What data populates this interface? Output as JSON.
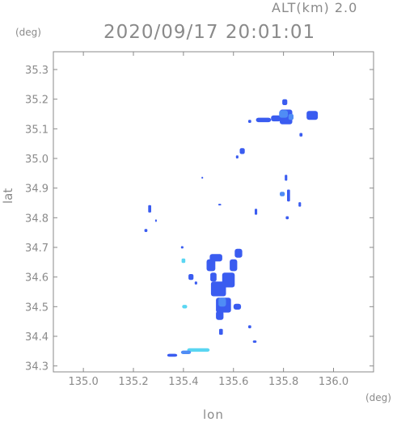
{
  "chart_data": {
    "type": "scatter",
    "header_right": "ALT(km)  2.0",
    "title": "2020/09/17 20:01:01",
    "xlabel": "lon",
    "ylabel": "lat",
    "x_unit": "(deg)",
    "y_unit": "(deg)",
    "xlim": [
      134.88,
      136.16
    ],
    "ylim": [
      34.28,
      35.36
    ],
    "x_ticks": [
      "135.0",
      "135.2",
      "135.4",
      "135.6",
      "135.8",
      "136.0"
    ],
    "x_tick_values": [
      135.0,
      135.2,
      135.4,
      135.6,
      135.8,
      136.0
    ],
    "y_ticks": [
      "34.3",
      "34.4",
      "34.5",
      "34.6",
      "34.7",
      "34.8",
      "34.9",
      "35.0",
      "35.1",
      "35.2",
      "35.3"
    ],
    "y_tick_values": [
      34.3,
      34.4,
      34.5,
      34.6,
      34.7,
      34.8,
      34.9,
      35.0,
      35.1,
      35.2,
      35.3
    ],
    "grid": false,
    "colors": {
      "weak": "#3a5cf0",
      "moderate": "#4f8cf5",
      "strong": "#5ad6f2",
      "axis": "#8a8a8a"
    },
    "echo_cells": [
      {
        "x": 135.72,
        "y": 35.13,
        "w": 0.06,
        "h": 0.015,
        "level": "weak"
      },
      {
        "x": 135.77,
        "y": 35.135,
        "w": 0.04,
        "h": 0.02,
        "level": "weak"
      },
      {
        "x": 135.81,
        "y": 35.14,
        "w": 0.05,
        "h": 0.05,
        "level": "weak"
      },
      {
        "x": 135.8,
        "y": 35.15,
        "w": 0.035,
        "h": 0.025,
        "level": "moderate"
      },
      {
        "x": 135.805,
        "y": 35.19,
        "w": 0.02,
        "h": 0.02,
        "level": "weak"
      },
      {
        "x": 135.83,
        "y": 35.14,
        "w": 0.02,
        "h": 0.02,
        "level": "moderate"
      },
      {
        "x": 135.915,
        "y": 35.145,
        "w": 0.045,
        "h": 0.03,
        "level": "weak"
      },
      {
        "x": 135.665,
        "y": 35.125,
        "w": 0.012,
        "h": 0.01,
        "level": "weak"
      },
      {
        "x": 135.87,
        "y": 35.08,
        "w": 0.012,
        "h": 0.012,
        "level": "weak"
      },
      {
        "x": 135.635,
        "y": 35.025,
        "w": 0.02,
        "h": 0.02,
        "level": "weak"
      },
      {
        "x": 135.615,
        "y": 35.005,
        "w": 0.01,
        "h": 0.01,
        "level": "weak"
      },
      {
        "x": 135.475,
        "y": 34.935,
        "w": 0.006,
        "h": 0.006,
        "level": "weak"
      },
      {
        "x": 135.81,
        "y": 34.935,
        "w": 0.01,
        "h": 0.02,
        "level": "weak"
      },
      {
        "x": 135.795,
        "y": 34.88,
        "w": 0.02,
        "h": 0.015,
        "level": "moderate"
      },
      {
        "x": 135.82,
        "y": 34.875,
        "w": 0.012,
        "h": 0.04,
        "level": "weak"
      },
      {
        "x": 135.865,
        "y": 34.845,
        "w": 0.01,
        "h": 0.015,
        "level": "weak"
      },
      {
        "x": 135.815,
        "y": 34.8,
        "w": 0.012,
        "h": 0.01,
        "level": "weak"
      },
      {
        "x": 135.69,
        "y": 34.82,
        "w": 0.01,
        "h": 0.02,
        "level": "weak"
      },
      {
        "x": 135.265,
        "y": 34.83,
        "w": 0.012,
        "h": 0.025,
        "level": "weak"
      },
      {
        "x": 135.29,
        "y": 34.79,
        "w": 0.006,
        "h": 0.008,
        "level": "weak"
      },
      {
        "x": 135.25,
        "y": 34.757,
        "w": 0.012,
        "h": 0.01,
        "level": "weak"
      },
      {
        "x": 135.545,
        "y": 34.845,
        "w": 0.012,
        "h": 0.004,
        "level": "weak"
      },
      {
        "x": 135.395,
        "y": 34.7,
        "w": 0.01,
        "h": 0.008,
        "level": "weak"
      },
      {
        "x": 135.53,
        "y": 34.665,
        "w": 0.05,
        "h": 0.025,
        "level": "weak"
      },
      {
        "x": 135.51,
        "y": 34.64,
        "w": 0.035,
        "h": 0.04,
        "level": "weak"
      },
      {
        "x": 135.62,
        "y": 34.68,
        "w": 0.03,
        "h": 0.03,
        "level": "weak"
      },
      {
        "x": 135.6,
        "y": 34.64,
        "w": 0.03,
        "h": 0.04,
        "level": "weak"
      },
      {
        "x": 135.58,
        "y": 34.59,
        "w": 0.05,
        "h": 0.05,
        "level": "weak"
      },
      {
        "x": 135.54,
        "y": 34.56,
        "w": 0.06,
        "h": 0.05,
        "level": "weak"
      },
      {
        "x": 135.52,
        "y": 34.6,
        "w": 0.025,
        "h": 0.03,
        "level": "weak"
      },
      {
        "x": 135.43,
        "y": 34.6,
        "w": 0.02,
        "h": 0.02,
        "level": "weak"
      },
      {
        "x": 135.4,
        "y": 34.655,
        "w": 0.015,
        "h": 0.015,
        "level": "strong"
      },
      {
        "x": 135.45,
        "y": 34.58,
        "w": 0.01,
        "h": 0.01,
        "level": "weak"
      },
      {
        "x": 135.56,
        "y": 34.505,
        "w": 0.06,
        "h": 0.05,
        "level": "weak"
      },
      {
        "x": 135.555,
        "y": 34.515,
        "w": 0.03,
        "h": 0.03,
        "level": "moderate"
      },
      {
        "x": 135.545,
        "y": 34.47,
        "w": 0.03,
        "h": 0.03,
        "level": "weak"
      },
      {
        "x": 135.615,
        "y": 34.5,
        "w": 0.03,
        "h": 0.02,
        "level": "weak"
      },
      {
        "x": 135.405,
        "y": 34.5,
        "w": 0.02,
        "h": 0.012,
        "level": "strong"
      },
      {
        "x": 135.55,
        "y": 34.415,
        "w": 0.015,
        "h": 0.02,
        "level": "weak"
      },
      {
        "x": 135.665,
        "y": 34.432,
        "w": 0.012,
        "h": 0.01,
        "level": "weak"
      },
      {
        "x": 135.685,
        "y": 34.382,
        "w": 0.015,
        "h": 0.008,
        "level": "weak"
      },
      {
        "x": 135.46,
        "y": 34.354,
        "w": 0.09,
        "h": 0.012,
        "level": "strong"
      },
      {
        "x": 135.41,
        "y": 34.346,
        "w": 0.04,
        "h": 0.012,
        "level": "moderate"
      },
      {
        "x": 135.355,
        "y": 34.336,
        "w": 0.04,
        "h": 0.01,
        "level": "weak"
      }
    ]
  }
}
